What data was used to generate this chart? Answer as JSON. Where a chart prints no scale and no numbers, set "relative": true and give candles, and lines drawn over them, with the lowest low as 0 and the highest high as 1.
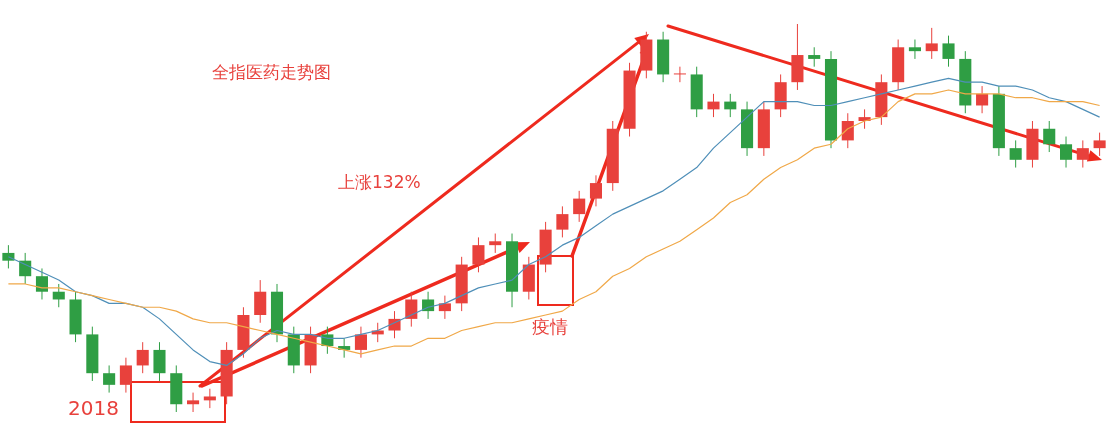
{
  "chart_data": {
    "type": "candlestick",
    "relative": true,
    "title": "全指医药走势图",
    "legend": false,
    "annotations": [
      "上涨132%",
      "疫情",
      "2018"
    ],
    "categories": [
      null,
      null,
      null,
      null,
      null,
      null,
      null,
      null,
      null,
      null,
      null,
      null,
      null,
      null,
      null,
      null,
      null,
      null,
      null,
      null,
      null,
      null,
      null,
      null,
      null,
      null,
      null,
      null,
      null,
      null,
      null,
      null,
      null,
      null,
      null,
      null,
      null,
      null,
      null,
      null,
      null,
      null,
      null,
      null,
      null,
      null,
      null,
      null,
      null,
      null,
      null,
      null,
      null,
      null,
      null,
      null,
      null,
      null,
      null,
      null,
      null,
      null,
      null,
      null,
      null,
      null
    ],
    "ohlc": [
      [
        0.41,
        0.43,
        0.37,
        0.39
      ],
      [
        0.39,
        0.41,
        0.33,
        0.35
      ],
      [
        0.35,
        0.37,
        0.29,
        0.31
      ],
      [
        0.31,
        0.33,
        0.27,
        0.29
      ],
      [
        0.29,
        0.31,
        0.18,
        0.2
      ],
      [
        0.2,
        0.22,
        0.08,
        0.1
      ],
      [
        0.1,
        0.12,
        0.05,
        0.07
      ],
      [
        0.07,
        0.14,
        0.05,
        0.12
      ],
      [
        0.12,
        0.18,
        0.1,
        0.16
      ],
      [
        0.16,
        0.18,
        0.08,
        0.1
      ],
      [
        0.1,
        0.12,
        0,
        0.02
      ],
      [
        0.02,
        0.05,
        0,
        0.03
      ],
      [
        0.03,
        0.06,
        0.01,
        0.04
      ],
      [
        0.04,
        0.18,
        0.02,
        0.16
      ],
      [
        0.16,
        0.27,
        0.14,
        0.25
      ],
      [
        0.25,
        0.34,
        0.23,
        0.31
      ],
      [
        0.31,
        0.33,
        0.18,
        0.2
      ],
      [
        0.2,
        0.22,
        0.1,
        0.12
      ],
      [
        0.12,
        0.22,
        0.1,
        0.2
      ],
      [
        0.2,
        0.22,
        0.15,
        0.17
      ],
      [
        0.17,
        0.19,
        0.14,
        0.16
      ],
      [
        0.16,
        0.22,
        0.14,
        0.2
      ],
      [
        0.2,
        0.23,
        0.18,
        0.21
      ],
      [
        0.21,
        0.26,
        0.19,
        0.24
      ],
      [
        0.24,
        0.31,
        0.22,
        0.29
      ],
      [
        0.29,
        0.31,
        0.24,
        0.26
      ],
      [
        0.26,
        0.3,
        0.24,
        0.28
      ],
      [
        0.28,
        0.4,
        0.26,
        0.38
      ],
      [
        0.38,
        0.45,
        0.36,
        0.43
      ],
      [
        0.43,
        0.46,
        0.41,
        0.44
      ],
      [
        0.44,
        0.46,
        0.27,
        0.31
      ],
      [
        0.31,
        0.4,
        0.29,
        0.38
      ],
      [
        0.38,
        0.49,
        0.36,
        0.47
      ],
      [
        0.47,
        0.53,
        0.45,
        0.51
      ],
      [
        0.51,
        0.57,
        0.49,
        0.55
      ],
      [
        0.55,
        0.61,
        0.53,
        0.59
      ],
      [
        0.59,
        0.75,
        0.57,
        0.73
      ],
      [
        0.73,
        0.9,
        0.71,
        0.88
      ],
      [
        0.88,
        0.98,
        0.86,
        0.96
      ],
      [
        0.96,
        0.98,
        0.85,
        0.87
      ],
      [
        0.87,
        0.89,
        0.85,
        0.87
      ],
      [
        0.87,
        0.89,
        0.76,
        0.78
      ],
      [
        0.78,
        0.82,
        0.76,
        0.8
      ],
      [
        0.8,
        0.82,
        0.76,
        0.78
      ],
      [
        0.78,
        0.8,
        0.66,
        0.68
      ],
      [
        0.68,
        0.8,
        0.66,
        0.78
      ],
      [
        0.78,
        0.87,
        0.76,
        0.85
      ],
      [
        0.85,
        1,
        0.83,
        0.92
      ],
      [
        0.92,
        0.94,
        0.89,
        0.91
      ],
      [
        0.91,
        0.93,
        0.68,
        0.7
      ],
      [
        0.7,
        0.77,
        0.68,
        0.75
      ],
      [
        0.75,
        0.78,
        0.73,
        0.76
      ],
      [
        0.76,
        0.87,
        0.74,
        0.85
      ],
      [
        0.85,
        0.96,
        0.83,
        0.94
      ],
      [
        0.94,
        0.96,
        0.91,
        0.93
      ],
      [
        0.93,
        0.99,
        0.91,
        0.95
      ],
      [
        0.95,
        0.97,
        0.89,
        0.91
      ],
      [
        0.91,
        0.93,
        0.77,
        0.79
      ],
      [
        0.79,
        0.84,
        0.77,
        0.82
      ],
      [
        0.82,
        0.84,
        0.66,
        0.68
      ],
      [
        0.68,
        0.7,
        0.63,
        0.65
      ],
      [
        0.65,
        0.75,
        0.63,
        0.73
      ],
      [
        0.73,
        0.75,
        0.67,
        0.69
      ],
      [
        0.69,
        0.71,
        0.63,
        0.65
      ],
      [
        0.65,
        0.7,
        0.63,
        0.68
      ],
      [
        0.68,
        0.72,
        0.66,
        0.7
      ]
    ],
    "colors": [
      "#2f9e44",
      "#2f9e44",
      "#2f9e44",
      "#2f9e44",
      "#2f9e44",
      "#2f9e44",
      "#2f9e44",
      "#e8413c",
      "#e8413c",
      "#2f9e44",
      "#2f9e44",
      "#e8413c",
      "#e8413c",
      "#e8413c",
      "#e8413c",
      "#e8413c",
      "#2f9e44",
      "#2f9e44",
      "#e8413c",
      "#2f9e44",
      "#2f9e44",
      "#e8413c",
      "#e8413c",
      "#e8413c",
      "#e8413c",
      "#2f9e44",
      "#e8413c",
      "#e8413c",
      "#e8413c",
      "#e8413c",
      "#2f9e44",
      "#e8413c",
      "#e8413c",
      "#e8413c",
      "#e8413c",
      "#e8413c",
      "#e8413c",
      "#e8413c",
      "#e8413c",
      "#2f9e44",
      "#e8413c",
      "#2f9e44",
      "#e8413c",
      "#2f9e44",
      "#2f9e44",
      "#e8413c",
      "#e8413c",
      "#e8413c",
      "#2f9e44",
      "#2f9e44",
      "#e8413c",
      "#e8413c",
      "#e8413c",
      "#e8413c",
      "#2f9e44",
      "#e8413c",
      "#2f9e44",
      "#2f9e44",
      "#e8413c",
      "#2f9e44",
      "#2f9e44",
      "#e8413c",
      "#2f9e44",
      "#2f9e44",
      "#e8413c",
      "#e8413c"
    ],
    "series": [
      {
        "type": "line",
        "color": "#f0a848",
        "values": [
          0.33,
          0.33,
          0.32,
          0.32,
          0.31,
          0.3,
          0.29,
          0.28,
          0.27,
          0.27,
          0.26,
          0.24,
          0.23,
          0.23,
          0.22,
          0.21,
          0.2,
          0.19,
          0.18,
          0.17,
          0.16,
          0.15,
          0.16,
          0.17,
          0.17,
          0.19,
          0.19,
          0.21,
          0.22,
          0.23,
          0.23,
          0.24,
          0.25,
          0.26,
          0.29,
          0.31,
          0.35,
          0.37,
          0.4,
          0.42,
          0.44,
          0.47,
          0.5,
          0.54,
          0.56,
          0.6,
          0.63,
          0.65,
          0.68,
          0.69,
          0.73,
          0.75,
          0.76,
          0.8,
          0.82,
          0.82,
          0.83,
          0.82,
          0.82,
          0.82,
          0.81,
          0.81,
          0.8,
          0.8,
          0.8,
          0.79
        ]
      },
      {
        "type": "line",
        "color": "#4f8fb8",
        "values": [
          0.4,
          0.38,
          0.36,
          0.34,
          0.31,
          0.3,
          0.28,
          0.28,
          0.27,
          0.24,
          0.2,
          0.16,
          0.13,
          0.12,
          0.15,
          0.19,
          0.21,
          0.2,
          0.2,
          0.19,
          0.19,
          0.2,
          0.21,
          0.23,
          0.25,
          0.27,
          0.28,
          0.3,
          0.32,
          0.33,
          0.34,
          0.38,
          0.4,
          0.43,
          0.45,
          0.48,
          0.51,
          0.53,
          0.55,
          0.57,
          0.6,
          0.63,
          0.68,
          0.72,
          0.76,
          0.8,
          0.8,
          0.8,
          0.79,
          0.79,
          0.8,
          0.81,
          0.82,
          0.83,
          0.84,
          0.85,
          0.86,
          0.85,
          0.85,
          0.84,
          0.84,
          0.83,
          0.81,
          0.8,
          0.78,
          0.76
        ]
      }
    ]
  }
}
